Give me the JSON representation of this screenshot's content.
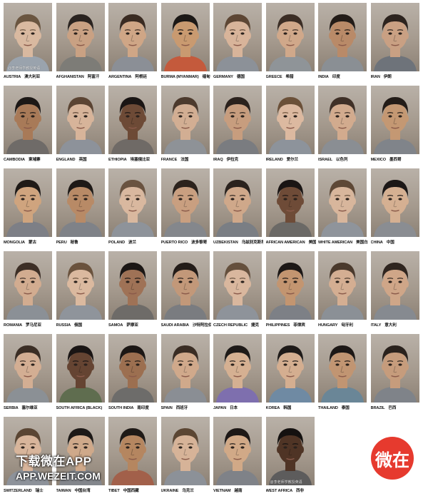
{
  "faces": [
    {
      "en": "AUSTRIA",
      "zh": "澳大利亚",
      "skin": "#d9b9a0",
      "hair": "#6a5540",
      "shirt": "#9aa3ad"
    },
    {
      "en": "AFGHANISTAN",
      "zh": "阿富汗",
      "skin": "#c9a183",
      "hair": "#2a2320",
      "shirt": "#7d7c77"
    },
    {
      "en": "ARGENTINA",
      "zh": "阿根廷",
      "skin": "#cfa686",
      "hair": "#3a2b22",
      "shirt": "#8b8f96"
    },
    {
      "en": "BURMA (MYANMAR)",
      "zh": "缅甸",
      "skin": "#c99a70",
      "hair": "#1c1816",
      "shirt": "#c45a3c"
    },
    {
      "en": "GERMANY",
      "zh": "德国",
      "skin": "#d8b49a",
      "hair": "#5d4634",
      "shirt": "#8c9198"
    },
    {
      "en": "GREECE",
      "zh": "希腊",
      "skin": "#d0a88a",
      "hair": "#3b2d25",
      "shirt": "#8f9498"
    },
    {
      "en": "INDIA",
      "zh": "印度",
      "skin": "#b98a68",
      "hair": "#231c18",
      "shirt": "#8a8f94"
    },
    {
      "en": "IRAN",
      "zh": "伊朗",
      "skin": "#c9a083",
      "hair": "#2c231e",
      "shirt": "#6e737a"
    },
    {
      "en": "CAMBODIA",
      "zh": "柬埔寨",
      "skin": "#a87a58",
      "hair": "#1c1816",
      "shirt": "#6f6b68"
    },
    {
      "en": "ENGLAND",
      "zh": "英国",
      "skin": "#d7b49a",
      "hair": "#5b4433",
      "shirt": "#8d929a"
    },
    {
      "en": "ETHIOPIA",
      "zh": "埃塞俄比亚",
      "skin": "#6d4a36",
      "hair": "#1a1514",
      "shirt": "#6f6a66"
    },
    {
      "en": "FRANCE",
      "zh": "法国",
      "skin": "#d2ae93",
      "hair": "#4c3a2d",
      "shirt": "#8e9297"
    },
    {
      "en": "IRAQ",
      "zh": "伊拉克",
      "skin": "#c79d7e",
      "hair": "#2b221d",
      "shirt": "#7a7c80"
    },
    {
      "en": "IRELAND",
      "zh": "爱尔兰",
      "skin": "#dcb9a0",
      "hair": "#6b5038",
      "shirt": "#8d939b"
    },
    {
      "en": "ISRAEL",
      "zh": "以色列",
      "skin": "#d2ab8e",
      "hair": "#3f3027",
      "shirt": "#8a8e93"
    },
    {
      "en": "MEXICO",
      "zh": "墨西哥",
      "skin": "#c49873",
      "hair": "#231c18",
      "shirt": "#80848a"
    },
    {
      "en": "MONGOLIA",
      "zh": "蒙古",
      "skin": "#cfa47e",
      "hair": "#1f1a17",
      "shirt": "#7d7f86"
    },
    {
      "en": "PERU",
      "zh": "秘鲁",
      "skin": "#b88a66",
      "hair": "#1e1916",
      "shirt": "#7f8288"
    },
    {
      "en": "POLAND",
      "zh": "波兰",
      "skin": "#d9b89f",
      "hair": "#6a5340",
      "shirt": "#8e939a"
    },
    {
      "en": "PUERTO RICO",
      "zh": "波多黎哥",
      "skin": "#c99f80",
      "hair": "#2c231d",
      "shirt": "#84878c"
    },
    {
      "en": "UZBEKISTAN",
      "zh": "乌兹别克斯坦",
      "skin": "#cfa88a",
      "hair": "#2b231e",
      "shirt": "#7a7e84"
    },
    {
      "en": "AFRICAN AMERICAN",
      "zh": "美国黑人",
      "skin": "#6e4b37",
      "hair": "#1a1514",
      "shirt": "#6b6966"
    },
    {
      "en": "WHITE AMERICAN",
      "zh": "美国白人",
      "skin": "#d8b69c",
      "hair": "#5e4836",
      "shirt": "#8f949b"
    },
    {
      "en": "CHINA",
      "zh": "中国",
      "skin": "#d5b092",
      "hair": "#1c1817",
      "shirt": "#8a8d92"
    },
    {
      "en": "ROMANIA",
      "zh": "罗马尼亚",
      "skin": "#d2ac90",
      "hair": "#3d2f26",
      "shirt": "#8b9096"
    },
    {
      "en": "RUSSIA",
      "zh": "俄国",
      "skin": "#dbb99f",
      "hair": "#6a523d",
      "shirt": "#8f949b"
    },
    {
      "en": "SAMOA",
      "zh": "萨摩亚",
      "skin": "#9f7256",
      "hair": "#1c1715",
      "shirt": "#6e6b68"
    },
    {
      "en": "SAUDI ARABIA",
      "zh": "沙特阿拉伯",
      "skin": "#c29879",
      "hair": "#231c18",
      "shirt": "#7a7c80"
    },
    {
      "en": "CZECH REPUBLIC",
      "zh": "捷克",
      "skin": "#d9b79e",
      "hair": "#65503d",
      "shirt": "#8e939a"
    },
    {
      "en": "PHILIPPINES",
      "zh": "菲律宾",
      "skin": "#c39570",
      "hair": "#1d1816",
      "shirt": "#7d8086"
    },
    {
      "en": "HUNGARY",
      "zh": "匈牙利",
      "skin": "#d4ae92",
      "hair": "#4a392c",
      "shirt": "#8b9096"
    },
    {
      "en": "ITALY",
      "zh": "意大利",
      "skin": "#cfa688",
      "hair": "#2f251f",
      "shirt": "#868a90"
    },
    {
      "en": "SERBIA",
      "zh": "塞尔维亚",
      "skin": "#d3ae93",
      "hair": "#3b2e25",
      "shirt": "#8b9095"
    },
    {
      "en": "SOUTH AFRICA (BLACK)",
      "zh": "",
      "skin": "#654432",
      "hair": "#1a1514",
      "shirt": "#5f6d4f"
    },
    {
      "en": "SOUTH INDIA",
      "zh": "南印度",
      "skin": "#9c6f50",
      "hair": "#1c1715",
      "shirt": "#6d6c6a"
    },
    {
      "en": "SPAIN",
      "zh": "西班牙",
      "skin": "#d0a98b",
      "hair": "#3a2d24",
      "shirt": "#8a8e94"
    },
    {
      "en": "JAPAN",
      "zh": "日本",
      "skin": "#d5b092",
      "hair": "#1e1a18",
      "shirt": "#7e6fae"
    },
    {
      "en": "KOREA",
      "zh": "韩国",
      "skin": "#d4ae90",
      "hair": "#1e1a18",
      "shirt": "#6f8aa3"
    },
    {
      "en": "THAILAND",
      "zh": "泰国",
      "skin": "#c19572",
      "hair": "#1d1816",
      "shirt": "#6a8697"
    },
    {
      "en": "BRAZIL",
      "zh": "巴西",
      "skin": "#c69c7c",
      "hair": "#2a221d",
      "shirt": "#7f8389"
    },
    {
      "en": "SWITZERLAND",
      "zh": "瑞士",
      "skin": "#d8b59b",
      "hair": "#5a4533",
      "shirt": "#8d929a"
    },
    {
      "en": "TAIWAN",
      "zh": "中国台湾",
      "skin": "#cfa98a",
      "hair": "#1d1917",
      "shirt": "#83868c"
    },
    {
      "en": "TIBET",
      "zh": "中国西藏",
      "skin": "#b58660",
      "hair": "#1f1a17",
      "shirt": "#a2604a"
    },
    {
      "en": "UKRAINE",
      "zh": "乌克兰",
      "skin": "#d6b398",
      "hair": "#5b4633",
      "shirt": "#8c9198"
    },
    {
      "en": "VIETNAM",
      "zh": "越南",
      "skin": "#d1a987",
      "hair": "#1d1816",
      "shirt": "#7f8288"
    },
    {
      "en": "WEST AFRICA",
      "zh": "西非",
      "skin": "#4f3425",
      "hair": "#141110",
      "shirt": "#5d5c5c"
    }
  ],
  "watermark": "@李老师学教授英语",
  "promo": {
    "line1": "下载微在APP",
    "line2": "APP.WEZEIT.COM"
  },
  "logo": {
    "text": "微在"
  }
}
